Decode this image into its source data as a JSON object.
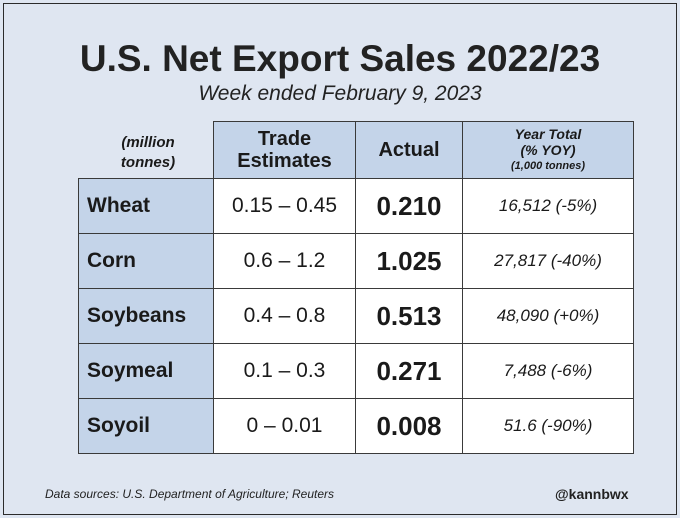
{
  "title": "U.S. Net Export Sales 2022/23",
  "subtitle": "Week ended February 9, 2023",
  "units_note": "(million tonnes)",
  "source": "Data sources: U.S. Department of Agriculture; Reuters",
  "handle": "@kannbwx",
  "headers": {
    "trade_estimates": "Trade Estimates",
    "actual": "Actual",
    "year_total": "Year Total",
    "year_total_sub": "(% YOY)",
    "year_total_units": "(1,000 tonnes)"
  },
  "chart_data": {
    "type": "table",
    "rows": [
      {
        "commodity": "Wheat",
        "trade_estimates": "0.15 – 0.45",
        "actual": "0.210",
        "year_total": "16,512 (-5%)"
      },
      {
        "commodity": "Corn",
        "trade_estimates": "0.6 – 1.2",
        "actual": "1.025",
        "year_total": "27,817 (-40%)"
      },
      {
        "commodity": "Soybeans",
        "trade_estimates": "0.4 – 0.8",
        "actual": "0.513",
        "year_total": "48,090 (+0%)"
      },
      {
        "commodity": "Soymeal",
        "trade_estimates": "0.1 – 0.3",
        "actual": "0.271",
        "year_total": "7,488 (-6%)"
      },
      {
        "commodity": "Soyoil",
        "trade_estimates": "0 – 0.01",
        "actual": "0.008",
        "year_total": "51.6 (-90%)"
      }
    ]
  }
}
